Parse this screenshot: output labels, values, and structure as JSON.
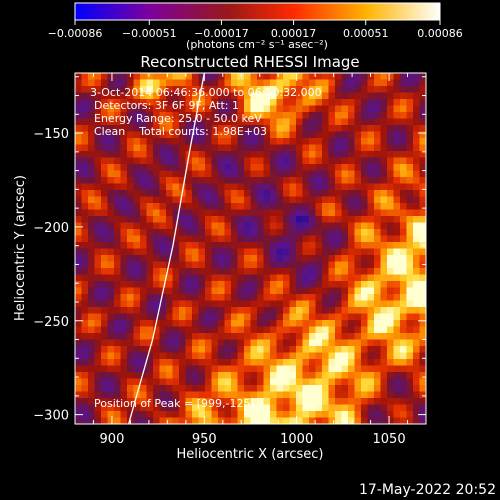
{
  "chart_data": {
    "type": "heatmap",
    "title": "Reconstructed RHESSI Image",
    "xlabel": "Heliocentric X (arcsec)",
    "ylabel": "Heliocentric Y (arcsec)",
    "xlim": [
      880,
      1070
    ],
    "ylim": [
      -305,
      -118
    ],
    "x_ticks": [
      {
        "value": 900,
        "label": "900"
      },
      {
        "value": 950,
        "label": "950"
      },
      {
        "value": 1000,
        "label": "1000"
      },
      {
        "value": 1050,
        "label": "1050"
      }
    ],
    "y_ticks": [
      {
        "value": -150,
        "label": "−150"
      },
      {
        "value": -200,
        "label": "−200"
      },
      {
        "value": -250,
        "label": "−250"
      },
      {
        "value": -300,
        "label": "−300"
      }
    ],
    "colorbar": {
      "range": [
        -0.00086,
        0.00086
      ],
      "ticks": [
        {
          "value": -0.00086,
          "label": "−0.00086"
        },
        {
          "value": -0.00051,
          "label": "−0.00051"
        },
        {
          "value": -0.00017,
          "label": "−0.00017"
        },
        {
          "value": 0.00017,
          "label": "0.00017"
        },
        {
          "value": 0.00051,
          "label": "0.00051"
        },
        {
          "value": 0.00086,
          "label": "0.00086"
        }
      ],
      "unit_label": "(photons cm⁻² s⁻¹ asec⁻²)",
      "colors": [
        "#0000ff",
        "#7a00a0",
        "#9a1818",
        "#ff2a00",
        "#ffb400",
        "#ffffff"
      ]
    },
    "annotations": [
      "3-Oct-2014 06:46:36.000 to 06:50:32.000",
      "Detectors: 3F 6F 9F, Att: 1",
      "Energy Range: 25.0 - 50.0 keV",
      "Clean    Total counts: 1.98E+03",
      "Position of Peak = [999,-125]"
    ],
    "peak": {
      "x": 999,
      "y": -125
    },
    "limb_curve": [
      {
        "x": 909,
        "y": -305
      },
      {
        "x": 922,
        "y": -260
      },
      {
        "x": 933,
        "y": -210
      },
      {
        "x": 942,
        "y": -160
      },
      {
        "x": 950,
        "y": -118
      }
    ],
    "legend": "none",
    "grid": false
  },
  "footer": {
    "timestamp": "17-May-2022 20:52"
  }
}
